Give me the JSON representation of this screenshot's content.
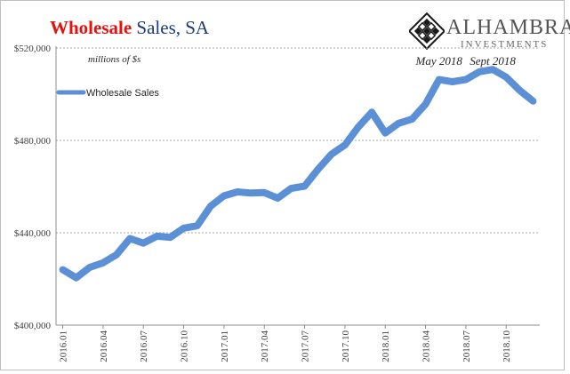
{
  "title": {
    "part1": "Wholesale",
    "part2": " Sales, SA"
  },
  "logo": {
    "name": "ALHAMBRA",
    "sub": "INVESTMENTS",
    "diamond_color": "#1a1a1a"
  },
  "chart_data": {
    "type": "line",
    "title": "Wholesale Sales, SA",
    "units_note": "millions of $s",
    "ylim": [
      400000,
      520000
    ],
    "yticks": [
      400000,
      440000,
      480000,
      520000
    ],
    "ytick_labels": [
      "$400,000",
      "$440,000",
      "$480,000",
      "$520,000"
    ],
    "xtick_labels": [
      "2016.01",
      "2016.04",
      "2016.07",
      "2016.10",
      "2017.01",
      "2017.04",
      "2017.07",
      "2017.10",
      "2018.01",
      "2018.04",
      "2018.07",
      "2018.10"
    ],
    "grid": true,
    "legend": "top-left",
    "line_color": "#5b8fd6",
    "series": [
      {
        "name": "Wholesale Sales",
        "x": [
          "2016.01",
          "2016.02",
          "2016.03",
          "2016.04",
          "2016.05",
          "2016.06",
          "2016.07",
          "2016.08",
          "2016.09",
          "2016.10",
          "2016.11",
          "2016.12",
          "2017.01",
          "2017.02",
          "2017.03",
          "2017.04",
          "2017.05",
          "2017.06",
          "2017.07",
          "2017.08",
          "2017.09",
          "2017.10",
          "2017.11",
          "2017.12",
          "2018.01",
          "2018.02",
          "2018.03",
          "2018.04",
          "2018.05",
          "2018.06",
          "2018.07",
          "2018.08",
          "2018.09",
          "2018.10",
          "2018.11",
          "2018.12"
        ],
        "values": [
          424000,
          420500,
          425000,
          427000,
          430500,
          437500,
          435500,
          438500,
          438000,
          442000,
          443000,
          451500,
          456000,
          457700,
          457200,
          457400,
          455000,
          459200,
          460200,
          467500,
          474000,
          478000,
          485800,
          492200,
          483200,
          487400,
          489200,
          495700,
          506300,
          505400,
          506300,
          509700,
          510700,
          507400,
          501700,
          497000
        ]
      }
    ],
    "annotations": [
      {
        "text": "May 2018",
        "at": "2018.05"
      },
      {
        "text": "Sept 2018",
        "at": "2018.09"
      }
    ]
  }
}
